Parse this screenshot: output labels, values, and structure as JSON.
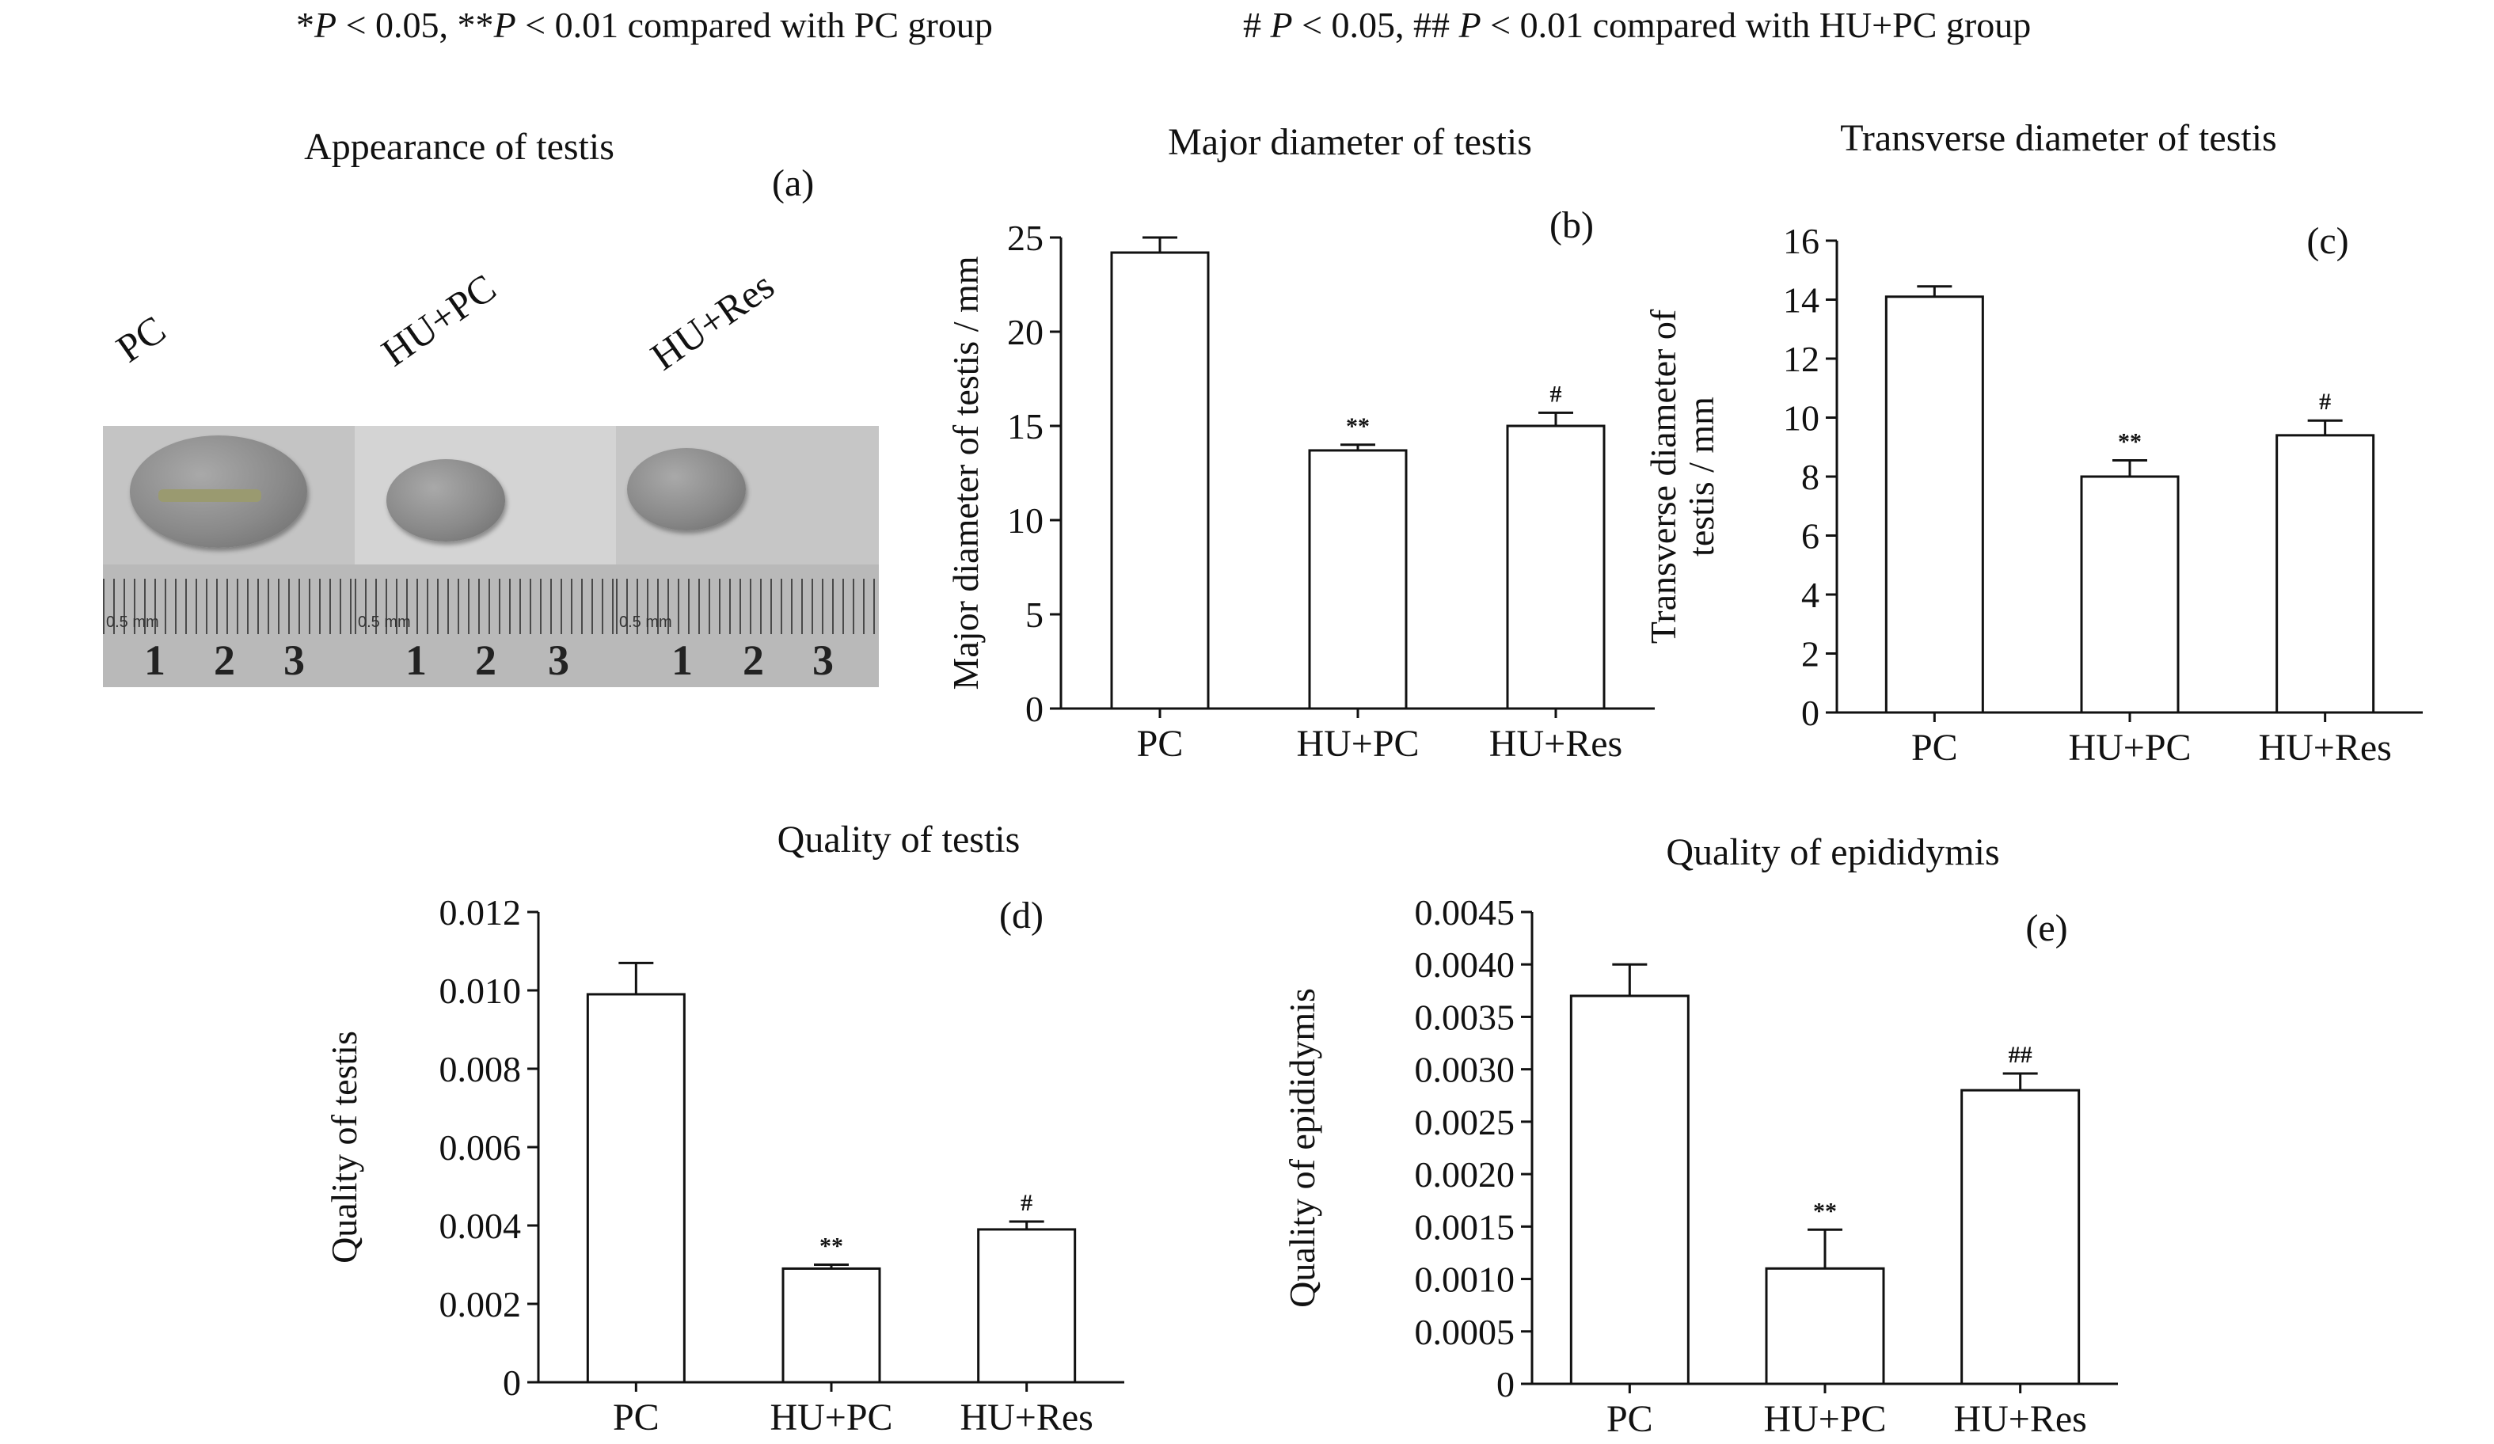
{
  "legend": {
    "left": {
      "star1": "*",
      "p1": "P",
      "rest1": " < 0.05, **",
      "p2": "P",
      "rest2": " < 0.01 compared with PC group"
    },
    "right": {
      "hash1": "# ",
      "p1": "P",
      "rest1": " < 0.05, ## ",
      "p2": "P",
      "rest2": " < 0.01 compared with HU+PC group"
    }
  },
  "photo_panel": {
    "title": "Appearance of testis",
    "letter": "(a)",
    "groups": [
      "PC",
      "HU+PC",
      "HU+Res"
    ],
    "ruler_digits": [
      "1",
      "2",
      "3"
    ],
    "ruler_units": [
      "0.5 mm",
      "0.5 mm",
      "0.5 mm"
    ],
    "colors": {
      "background": "#c8c8c8",
      "ruler": "#b9b9b9",
      "testis": "#8a8a8a"
    }
  },
  "chart_data": [
    {
      "id": "b",
      "type": "bar",
      "title": "Major diameter of testis",
      "letter": "(b)",
      "xlabel": "",
      "ylabel": "Major diameter of testis / mm",
      "categories": [
        "PC",
        "HU+PC",
        "HU+Res"
      ],
      "values": [
        24.2,
        13.7,
        15.0
      ],
      "errors": [
        0.8,
        0.3,
        0.7
      ],
      "marks": [
        "",
        "**",
        "#"
      ],
      "ylim": [
        0,
        25
      ],
      "yticks": [
        0,
        5,
        10,
        15,
        20,
        25
      ],
      "ytick_labels": [
        "0",
        "5",
        "10",
        "15",
        "20",
        "25"
      ],
      "grid": false
    },
    {
      "id": "c",
      "type": "bar",
      "title": "Transverse diameter of testis",
      "letter": "(c)",
      "xlabel": "",
      "ylabel": [
        "Transverse diameter of",
        "testis / mm"
      ],
      "categories": [
        "PC",
        "HU+PC",
        "HU+Res"
      ],
      "values": [
        14.1,
        8.0,
        9.4
      ],
      "errors": [
        0.35,
        0.55,
        0.5
      ],
      "marks": [
        "",
        "**",
        "#"
      ],
      "ylim": [
        0,
        16
      ],
      "yticks": [
        0,
        2,
        4,
        6,
        8,
        10,
        12,
        14,
        16
      ],
      "ytick_labels": [
        "0",
        "2",
        "4",
        "6",
        "8",
        "10",
        "12",
        "14",
        "16"
      ],
      "grid": false
    },
    {
      "id": "d",
      "type": "bar",
      "title": "Quality of testis",
      "letter": "(d)",
      "xlabel": "",
      "ylabel": "Quality of testis",
      "categories": [
        "PC",
        "HU+PC",
        "HU+Res"
      ],
      "values": [
        0.0099,
        0.0029,
        0.0039
      ],
      "errors": [
        0.0008,
        0.0001,
        0.0002
      ],
      "marks": [
        "",
        "**",
        "#"
      ],
      "ylim": [
        0,
        0.012
      ],
      "yticks": [
        0,
        0.002,
        0.004,
        0.006,
        0.008,
        0.01,
        0.012
      ],
      "ytick_labels": [
        "0",
        "0.002",
        "0.004",
        "0.006",
        "0.008",
        "0.010",
        "0.012"
      ],
      "grid": false
    },
    {
      "id": "e",
      "type": "bar",
      "title": "Quality of epididymis",
      "letter": "(e)",
      "xlabel": "",
      "ylabel": "Quality of epididymis",
      "categories": [
        "PC",
        "HU+PC",
        "HU+Res"
      ],
      "values": [
        0.0037,
        0.0011,
        0.0028
      ],
      "errors": [
        0.0003,
        0.00037,
        0.00016
      ],
      "marks": [
        "",
        "**",
        "##"
      ],
      "ylim": [
        0,
        0.0045
      ],
      "yticks": [
        0,
        0.0005,
        0.001,
        0.0015,
        0.002,
        0.0025,
        0.003,
        0.0035,
        0.004,
        0.0045
      ],
      "ytick_labels": [
        "0",
        "0.0005",
        "0.0010",
        "0.0015",
        "0.0020",
        "0.0025",
        "0.0030",
        "0.0035",
        "0.0040",
        "0.0045"
      ],
      "grid": false
    }
  ]
}
